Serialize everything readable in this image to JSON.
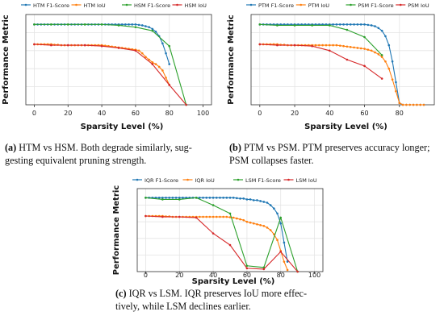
{
  "chart_data": [
    {
      "type": "line",
      "id": "a",
      "xlabel": "Sparsity Level (%)",
      "ylabel": "Performance Metric",
      "xlim": [
        -5,
        105
      ],
      "ylim": [
        0,
        1
      ],
      "xticks": [
        "0",
        "20",
        "40",
        "60",
        "80",
        "100"
      ],
      "legend": "top",
      "grid": true,
      "series": [
        {
          "name": "HTM F1-Score",
          "color": "#1f77b4",
          "marker": "dot",
          "x": [
            0,
            2,
            4,
            6,
            8,
            10,
            12,
            14,
            16,
            18,
            20,
            22,
            24,
            26,
            28,
            30,
            32,
            34,
            36,
            38,
            40,
            42,
            44,
            46,
            48,
            50,
            52,
            54,
            56,
            58,
            60,
            62,
            64,
            66,
            68,
            70,
            72,
            74,
            76,
            78,
            80
          ],
          "y": [
            0.89,
            0.89,
            0.89,
            0.89,
            0.89,
            0.89,
            0.89,
            0.89,
            0.89,
            0.89,
            0.89,
            0.89,
            0.89,
            0.89,
            0.89,
            0.89,
            0.89,
            0.89,
            0.89,
            0.89,
            0.89,
            0.89,
            0.89,
            0.89,
            0.89,
            0.89,
            0.89,
            0.89,
            0.89,
            0.89,
            0.89,
            0.885,
            0.88,
            0.87,
            0.86,
            0.84,
            0.81,
            0.76,
            0.68,
            0.57,
            0.45
          ]
        },
        {
          "name": "HTM IoU",
          "color": "#ff7f0e",
          "marker": "dot",
          "x": [
            0,
            2,
            4,
            6,
            8,
            10,
            12,
            14,
            16,
            18,
            20,
            22,
            24,
            26,
            28,
            30,
            32,
            34,
            36,
            38,
            40,
            42,
            44,
            46,
            48,
            50,
            52,
            54,
            56,
            58,
            60,
            62,
            64,
            66,
            68,
            70,
            72,
            74,
            76,
            78,
            80
          ],
          "y": [
            0.67,
            0.67,
            0.67,
            0.67,
            0.67,
            0.67,
            0.665,
            0.665,
            0.66,
            0.66,
            0.66,
            0.66,
            0.66,
            0.66,
            0.66,
            0.66,
            0.66,
            0.66,
            0.66,
            0.66,
            0.66,
            0.655,
            0.65,
            0.645,
            0.64,
            0.635,
            0.63,
            0.625,
            0.62,
            0.615,
            0.61,
            0.6,
            0.57,
            0.53,
            0.5,
            0.47,
            0.45,
            0.42,
            0.38,
            0.3,
            0.22
          ]
        },
        {
          "name": "HSM F1-Score",
          "color": "#2ca02c",
          "marker": "dot",
          "x": [
            0,
            10,
            20,
            30,
            40,
            50,
            60,
            70,
            80,
            90
          ],
          "y": [
            0.89,
            0.89,
            0.89,
            0.89,
            0.89,
            0.88,
            0.86,
            0.82,
            0.65,
            0.0
          ]
        },
        {
          "name": "HSM IoU",
          "color": "#d62728",
          "marker": "dot",
          "x": [
            0,
            10,
            20,
            30,
            40,
            50,
            60,
            70,
            80,
            90
          ],
          "y": [
            0.67,
            0.66,
            0.66,
            0.66,
            0.65,
            0.63,
            0.6,
            0.45,
            0.22,
            0.0
          ]
        }
      ]
    },
    {
      "type": "line",
      "id": "b",
      "xlabel": "Sparsity Level (%)",
      "ylabel": "Performance Metric",
      "xlim": [
        -5,
        100
      ],
      "ylim": [
        0,
        1
      ],
      "xticks": [
        "0",
        "20",
        "40",
        "60",
        "80"
      ],
      "legend": "top",
      "grid": true,
      "series": [
        {
          "name": "PTM F1-Score",
          "color": "#1f77b4",
          "marker": "dot",
          "x": [
            0,
            2,
            4,
            6,
            8,
            10,
            12,
            14,
            16,
            18,
            20,
            22,
            24,
            26,
            28,
            30,
            32,
            34,
            36,
            38,
            40,
            42,
            44,
            46,
            48,
            50,
            52,
            54,
            56,
            58,
            60,
            62,
            64,
            66,
            68,
            70,
            72,
            74,
            76,
            78,
            80,
            82,
            84,
            86,
            88,
            90,
            92,
            94
          ],
          "y": [
            0.89,
            0.89,
            0.89,
            0.89,
            0.89,
            0.89,
            0.89,
            0.89,
            0.89,
            0.89,
            0.89,
            0.89,
            0.89,
            0.89,
            0.89,
            0.89,
            0.89,
            0.89,
            0.89,
            0.89,
            0.89,
            0.89,
            0.89,
            0.89,
            0.89,
            0.89,
            0.89,
            0.89,
            0.89,
            0.89,
            0.89,
            0.885,
            0.88,
            0.87,
            0.85,
            0.82,
            0.76,
            0.66,
            0.48,
            0.25,
            0.02,
            0.0,
            0.0,
            0.0,
            0.0,
            0.0,
            0.0,
            0.0
          ]
        },
        {
          "name": "PTM IoU",
          "color": "#ff7f0e",
          "marker": "dot",
          "x": [
            0,
            2,
            4,
            6,
            8,
            10,
            12,
            14,
            16,
            18,
            20,
            22,
            24,
            26,
            28,
            30,
            32,
            34,
            36,
            38,
            40,
            42,
            44,
            46,
            48,
            50,
            52,
            54,
            56,
            58,
            60,
            62,
            64,
            66,
            68,
            70,
            72,
            74,
            76,
            78,
            80,
            82,
            84,
            86,
            88,
            90,
            92,
            94
          ],
          "y": [
            0.67,
            0.67,
            0.67,
            0.67,
            0.67,
            0.67,
            0.665,
            0.665,
            0.66,
            0.66,
            0.66,
            0.66,
            0.66,
            0.66,
            0.66,
            0.66,
            0.66,
            0.66,
            0.66,
            0.66,
            0.66,
            0.66,
            0.66,
            0.655,
            0.65,
            0.645,
            0.64,
            0.635,
            0.63,
            0.625,
            0.62,
            0.61,
            0.6,
            0.58,
            0.56,
            0.53,
            0.48,
            0.4,
            0.28,
            0.15,
            0.02,
            0.0,
            0.0,
            0.0,
            0.0,
            0.0,
            0.0,
            0.0
          ]
        },
        {
          "name": "PSM F1-Score",
          "color": "#2ca02c",
          "marker": "dot",
          "x": [
            0,
            10,
            20,
            30,
            40,
            50,
            60,
            70
          ],
          "y": [
            0.89,
            0.88,
            0.88,
            0.88,
            0.88,
            0.83,
            0.75,
            0.55
          ]
        },
        {
          "name": "PSM IoU",
          "color": "#d62728",
          "marker": "dot",
          "x": [
            0,
            10,
            20,
            30,
            40,
            50,
            60,
            70
          ],
          "y": [
            0.67,
            0.66,
            0.66,
            0.65,
            0.6,
            0.5,
            0.43,
            0.29
          ]
        }
      ]
    },
    {
      "type": "line",
      "id": "c",
      "xlabel": "Sparsity Level (%)",
      "ylabel": "Performance Metric",
      "xlim": [
        -5,
        105
      ],
      "ylim": [
        0,
        1
      ],
      "xticks": [
        "0",
        "20",
        "40",
        "60",
        "80",
        "100"
      ],
      "legend": "top",
      "grid": true,
      "series": [
        {
          "name": "IQR F1-Score",
          "color": "#1f77b4",
          "marker": "dot",
          "x": [
            0,
            2,
            4,
            6,
            8,
            10,
            12,
            14,
            16,
            18,
            20,
            22,
            24,
            26,
            28,
            30,
            32,
            34,
            36,
            38,
            40,
            42,
            44,
            46,
            48,
            50,
            52,
            54,
            56,
            58,
            60,
            62,
            64,
            66,
            68,
            70,
            72,
            74,
            76,
            78,
            80,
            82,
            84
          ],
          "y": [
            0.89,
            0.89,
            0.89,
            0.89,
            0.89,
            0.89,
            0.89,
            0.89,
            0.89,
            0.89,
            0.89,
            0.89,
            0.89,
            0.89,
            0.89,
            0.89,
            0.89,
            0.89,
            0.89,
            0.89,
            0.89,
            0.89,
            0.89,
            0.89,
            0.89,
            0.89,
            0.89,
            0.885,
            0.88,
            0.88,
            0.87,
            0.87,
            0.86,
            0.86,
            0.85,
            0.84,
            0.83,
            0.8,
            0.76,
            0.7,
            0.58,
            0.35,
            0.12
          ]
        },
        {
          "name": "IQR IoU",
          "color": "#ff7f0e",
          "marker": "dot",
          "x": [
            0,
            2,
            4,
            6,
            8,
            10,
            12,
            14,
            16,
            18,
            20,
            22,
            24,
            26,
            28,
            30,
            32,
            34,
            36,
            38,
            40,
            42,
            44,
            46,
            48,
            50,
            52,
            54,
            56,
            58,
            60,
            62,
            64,
            66,
            68,
            70,
            72,
            74,
            76,
            78,
            80,
            82,
            84
          ],
          "y": [
            0.67,
            0.67,
            0.67,
            0.67,
            0.67,
            0.67,
            0.665,
            0.665,
            0.66,
            0.66,
            0.66,
            0.66,
            0.66,
            0.66,
            0.66,
            0.66,
            0.66,
            0.66,
            0.66,
            0.66,
            0.66,
            0.66,
            0.66,
            0.66,
            0.66,
            0.655,
            0.65,
            0.64,
            0.63,
            0.62,
            0.6,
            0.59,
            0.58,
            0.57,
            0.56,
            0.55,
            0.53,
            0.5,
            0.45,
            0.38,
            0.25,
            0.12,
            0.02
          ]
        },
        {
          "name": "LSM F1-Score",
          "color": "#2ca02c",
          "marker": "dot",
          "x": [
            0,
            10,
            20,
            30,
            40,
            50,
            60,
            70,
            80,
            90
          ],
          "y": [
            0.89,
            0.87,
            0.87,
            0.89,
            0.8,
            0.7,
            0.07,
            0.05,
            0.65,
            0.0
          ]
        },
        {
          "name": "LSM IoU",
          "color": "#d62728",
          "marker": "dot",
          "x": [
            0,
            10,
            20,
            30,
            40,
            50,
            60,
            70,
            80,
            90
          ],
          "y": [
            0.67,
            0.66,
            0.66,
            0.65,
            0.46,
            0.32,
            0.04,
            0.03,
            0.24,
            0.0
          ]
        }
      ]
    }
  ],
  "captions": {
    "a": {
      "label": "(a)",
      "text": " HTM vs HSM. Both degrade similarly, sug-",
      "text2": "gesting equivalent pruning strength."
    },
    "b": {
      "label": "(b)",
      "text": " PTM vs PSM. PTM preserves accuracy longer;",
      "text2": "PSM collapses faster."
    },
    "c": {
      "label": "(c)",
      "text": " IQR vs LSM. IQR preserves IoU more effec-",
      "text2": "tively, while LSM declines earlier."
    }
  }
}
